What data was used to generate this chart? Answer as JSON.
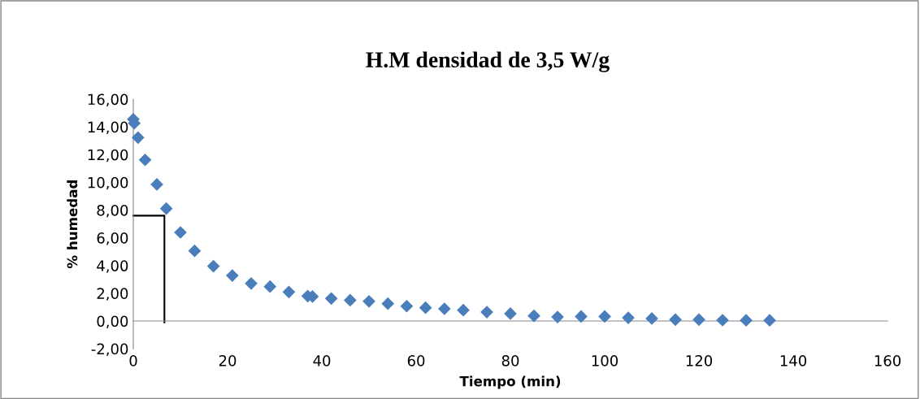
{
  "chart_data": {
    "type": "scatter",
    "title": "H.M densidad de 3,5 W/g",
    "xlabel": "Tiempo (min)",
    "ylabel": "% humedad",
    "xlim": [
      0,
      160
    ],
    "xticks": [
      0,
      20,
      40,
      60,
      80,
      100,
      120,
      140,
      160
    ],
    "ylim": [
      -2,
      16
    ],
    "yticks": [
      {
        "value": -2,
        "label": "-2,00"
      },
      {
        "value": 0,
        "label": "0,00"
      },
      {
        "value": 2,
        "label": "2,00"
      },
      {
        "value": 4,
        "label": "4,00"
      },
      {
        "value": 6,
        "label": "6,00"
      },
      {
        "value": 8,
        "label": "8,00"
      },
      {
        "value": 10,
        "label": "10,00"
      },
      {
        "value": 12,
        "label": "12,00"
      },
      {
        "value": 14,
        "label": "14,00"
      },
      {
        "value": 16,
        "label": "16,00"
      }
    ],
    "grid": false,
    "marker": "diamond",
    "series": [
      {
        "color": "#4a7ebb",
        "x": [
          0,
          0.2,
          1,
          2.5,
          5,
          7,
          10,
          13,
          17,
          21,
          25,
          29,
          33,
          37,
          38,
          42,
          46,
          50,
          54,
          58,
          62,
          66,
          70,
          75,
          80,
          85,
          90,
          95,
          100,
          105,
          110,
          115,
          120,
          125,
          130,
          135
        ],
        "values": [
          14.55,
          14.26,
          13.23,
          11.62,
          9.85,
          8.11,
          6.39,
          5.06,
          3.95,
          3.28,
          2.71,
          2.48,
          2.09,
          1.8,
          1.76,
          1.62,
          1.5,
          1.42,
          1.25,
          1.07,
          0.96,
          0.88,
          0.78,
          0.64,
          0.53,
          0.37,
          0.29,
          0.33,
          0.33,
          0.23,
          0.18,
          0.1,
          0.1,
          0.06,
          0.05,
          0.05
        ]
      },
      {
        "type": "line",
        "color": "#000000",
        "marker": "none",
        "x": [
          0,
          6.6,
          6.6
        ],
        "values": [
          7.6,
          7.6,
          -0.1
        ]
      }
    ]
  }
}
